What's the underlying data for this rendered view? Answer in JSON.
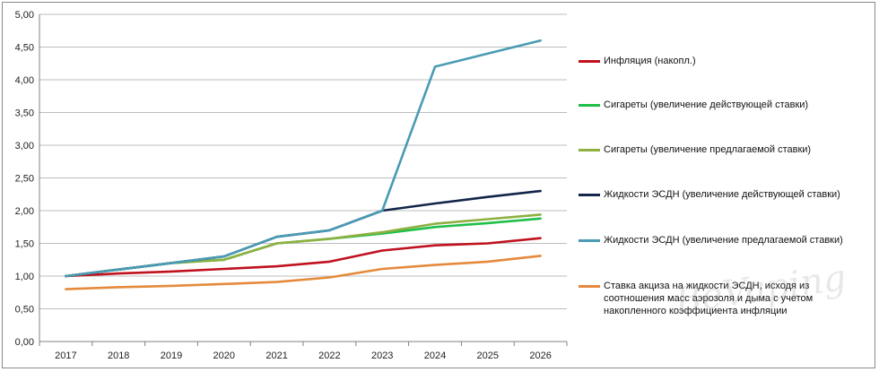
{
  "chart_data": {
    "type": "line",
    "title": "",
    "xlabel": "",
    "ylabel": "",
    "x": [
      "2017",
      "2018",
      "2019",
      "2020",
      "2021",
      "2022",
      "2023",
      "2024",
      "2025",
      "2026"
    ],
    "ylim": [
      0,
      5
    ],
    "y_ticks": [
      "0,00",
      "0,50",
      "1,00",
      "1,50",
      "2,00",
      "2,50",
      "3,00",
      "3,50",
      "4,00",
      "4,50",
      "5,00"
    ],
    "grid": "horizontal",
    "legend_position": "right",
    "series": [
      {
        "name": "Инфляция (накопл.)",
        "color": "#c0111f",
        "values": [
          1.0,
          1.04,
          1.07,
          1.11,
          1.15,
          1.22,
          1.39,
          1.47,
          1.5,
          1.58
        ]
      },
      {
        "name": "Сигареты (увеличение действующей ставки)",
        "color": "#1fbf4a",
        "values": [
          1.0,
          1.1,
          1.2,
          1.25,
          1.5,
          1.57,
          1.65,
          1.75,
          1.81,
          1.88
        ]
      },
      {
        "name": "Сигареты (увеличение предлагаемой ставки)",
        "color": "#8db040",
        "values": [
          1.0,
          1.1,
          1.2,
          1.25,
          1.5,
          1.57,
          1.67,
          1.8,
          1.87,
          1.94
        ]
      },
      {
        "name": "Жидкости ЭСДН (увеличение действующей ставки)",
        "color": "#14254a",
        "values": [
          1.0,
          1.1,
          1.2,
          1.3,
          1.6,
          1.7,
          2.0,
          2.11,
          2.21,
          2.3
        ]
      },
      {
        "name": "Жидкости ЭСДН (увеличение предлагаемой ставки)",
        "color": "#4a9bb4",
        "values": [
          1.0,
          1.1,
          1.2,
          1.3,
          1.6,
          1.7,
          2.0,
          4.2,
          4.4,
          4.6
        ]
      },
      {
        "name": "Ставка акциза на жидкости ЭСДН, исходя из соотношения масс аэрозоля и дыма с учетом накопленного коэффициента инфляции",
        "color": "#e58a3c",
        "values": [
          0.8,
          0.83,
          0.85,
          0.88,
          0.91,
          0.98,
          1.11,
          1.17,
          1.22,
          1.31
        ]
      }
    ]
  },
  "watermark": "BeVaping"
}
